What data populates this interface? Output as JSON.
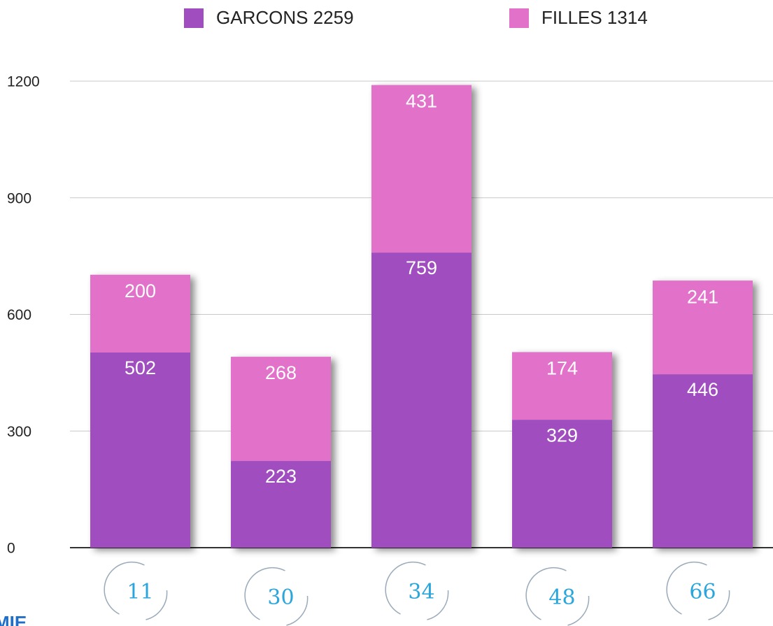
{
  "chart_data": {
    "type": "stacked_bar",
    "categories": [
      "11",
      "30",
      "34",
      "48",
      "66"
    ],
    "series": [
      {
        "name": "GARCONS 2259",
        "color": "#a04dbf",
        "values": [
          502,
          223,
          759,
          329,
          446
        ]
      },
      {
        "name": "FILLES 1314",
        "color": "#e271c9",
        "values": [
          200,
          268,
          431,
          174,
          241
        ]
      }
    ],
    "ylim": [
      0,
      1200
    ],
    "yticks": [
      0,
      300,
      600,
      900,
      1200
    ],
    "grid": true,
    "annotation": "MIE"
  }
}
